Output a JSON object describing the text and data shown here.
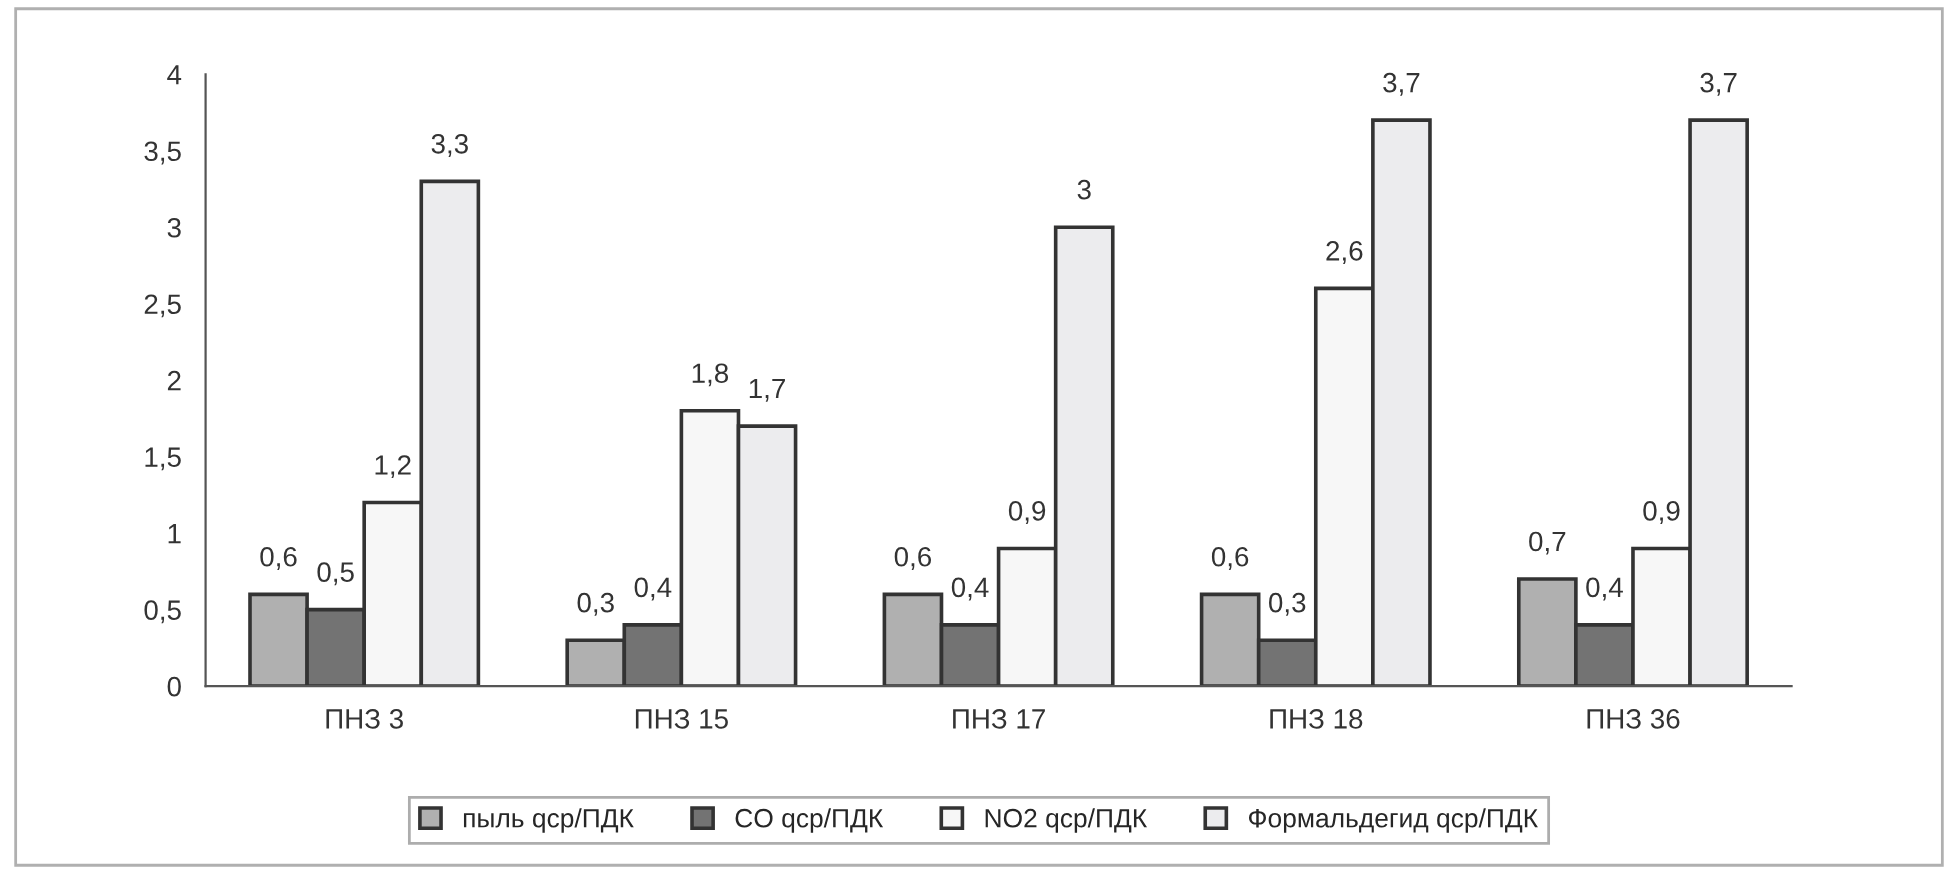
{
  "chart_data": {
    "type": "bar",
    "categories": [
      "ПНЗ 3",
      "ПНЗ 15",
      "ПНЗ 17",
      "ПНЗ 18",
      "ПНЗ 36"
    ],
    "series": [
      {
        "name": "пыль qср/ПДК",
        "color": "#b0b0b0",
        "values": [
          0.6,
          0.3,
          0.6,
          0.6,
          0.7
        ],
        "value_labels": [
          "0,6",
          "0,3",
          "0,6",
          "0,6",
          "0,7"
        ]
      },
      {
        "name": "CO qср/ПДК",
        "color": "#737373",
        "values": [
          0.5,
          0.4,
          0.4,
          0.3,
          0.4
        ],
        "value_labels": [
          "0,5",
          "0,4",
          "0,4",
          "0,3",
          "0,4"
        ]
      },
      {
        "name": "NO2 qср/ПДК",
        "color": "#f7f7f7",
        "values": [
          1.2,
          1.8,
          0.9,
          2.6,
          0.9
        ],
        "value_labels": [
          "1,2",
          "1,8",
          "0,9",
          "2,6",
          "0,9"
        ]
      },
      {
        "name": "Формальдегид qср/ПДК",
        "color": "#ececee",
        "values": [
          3.3,
          1.7,
          3.0,
          3.7,
          3.7
        ],
        "value_labels": [
          "3,3",
          "1,7",
          "3",
          "3,7",
          "3,7"
        ]
      }
    ],
    "ylim": [
      0,
      4
    ],
    "yticks": [
      0,
      {
        "value": 0.5,
        "label": "0,5"
      },
      1,
      {
        "value": 1.5,
        "label": "1,5"
      },
      2,
      {
        "value": 2.5,
        "label": "2,5"
      },
      3,
      {
        "value": 3.5,
        "label": "3,5"
      },
      4
    ],
    "grid": false,
    "legend": "bottom"
  }
}
